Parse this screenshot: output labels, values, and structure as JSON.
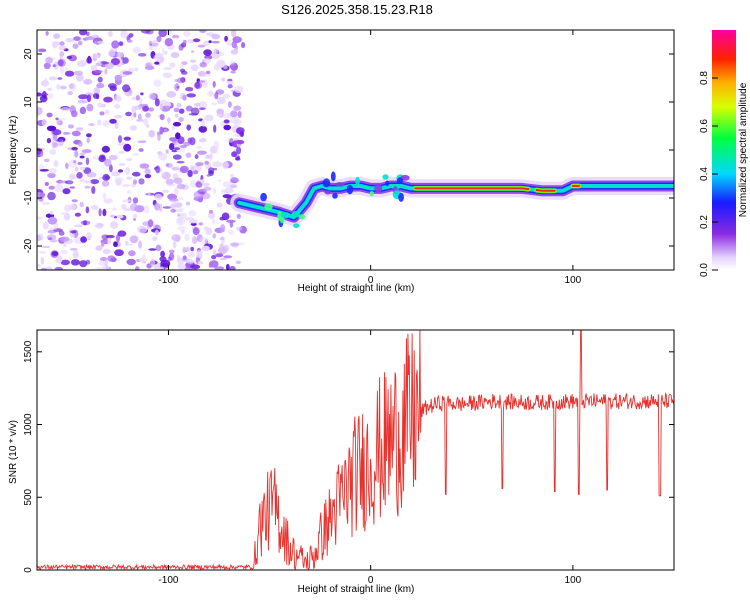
{
  "page_title": "S126.2025.358.15.23.R18",
  "chart_data": [
    {
      "type": "heatmap",
      "name": "spectrogram",
      "title": "S126.2025.358.15.23.R18",
      "xlabel": "Height of straight line (km)",
      "ylabel": "Frequency (Hz)",
      "xlim": [
        -165,
        150
      ],
      "ylim": [
        -25,
        25
      ],
      "xticks": [
        -100,
        0,
        100
      ],
      "yticks": [
        -20,
        -10,
        0,
        10,
        20
      ],
      "noise_region_x": [
        -165,
        -63
      ],
      "signal_track": {
        "x": [
          -65,
          -55,
          -45,
          -38,
          -32,
          -28,
          -24,
          -20,
          -15,
          -10,
          -5,
          0,
          5,
          10,
          15,
          20,
          30,
          50,
          75,
          85,
          95,
          100,
          110,
          130,
          150
        ],
        "freq": [
          -11,
          -12,
          -13,
          -14,
          -11,
          -8,
          -7.5,
          -8,
          -8,
          -7.5,
          -7.5,
          -8,
          -8,
          -7.5,
          -7.5,
          -8,
          -8,
          -8,
          -8,
          -8.5,
          -8.5,
          -7.5,
          -7.5,
          -7.5,
          -7.5
        ]
      },
      "colorbar": {
        "label": "Normalized spectral amplitude",
        "range": [
          0,
          1
        ],
        "ticks": [
          "0.0",
          "0.2",
          "0.4",
          "0.6",
          "0.8"
        ],
        "tick_values": [
          0,
          0.2,
          0.4,
          0.6,
          0.8
        ]
      }
    },
    {
      "type": "line",
      "name": "snr",
      "xlabel": "Height of straight line (km)",
      "ylabel": "SNR (10 * v/v)",
      "xlim": [
        -165,
        150
      ],
      "ylim": [
        0,
        1650
      ],
      "xticks": [
        -100,
        0,
        100
      ],
      "yticks": [
        0,
        500,
        1000,
        1500
      ],
      "color": "#e8302c",
      "baseline": {
        "x": [
          -165,
          -58,
          -55,
          -52,
          -48,
          -44,
          -40,
          -36,
          -32,
          -28,
          -24,
          -20,
          -16,
          -12,
          -8,
          -4,
          0,
          4,
          8,
          12,
          16,
          20,
          24,
          28,
          35,
          45,
          60,
          80,
          100,
          120,
          150
        ],
        "y": [
          20,
          20,
          300,
          380,
          450,
          300,
          150,
          100,
          50,
          100,
          250,
          350,
          450,
          550,
          650,
          700,
          750,
          820,
          860,
          920,
          980,
          1030,
          1080,
          1120,
          1150,
          1140,
          1160,
          1150,
          1160,
          1160,
          1160
        ]
      },
      "dips": [
        {
          "x": 37,
          "y": 520
        },
        {
          "x": 65,
          "y": 560
        },
        {
          "x": 91,
          "y": 540
        },
        {
          "x": 103,
          "y": 520
        },
        {
          "x": 117,
          "y": 550
        },
        {
          "x": 143,
          "y": 510
        }
      ],
      "spikes": [
        {
          "x": 104,
          "y": 1650
        }
      ]
    }
  ]
}
